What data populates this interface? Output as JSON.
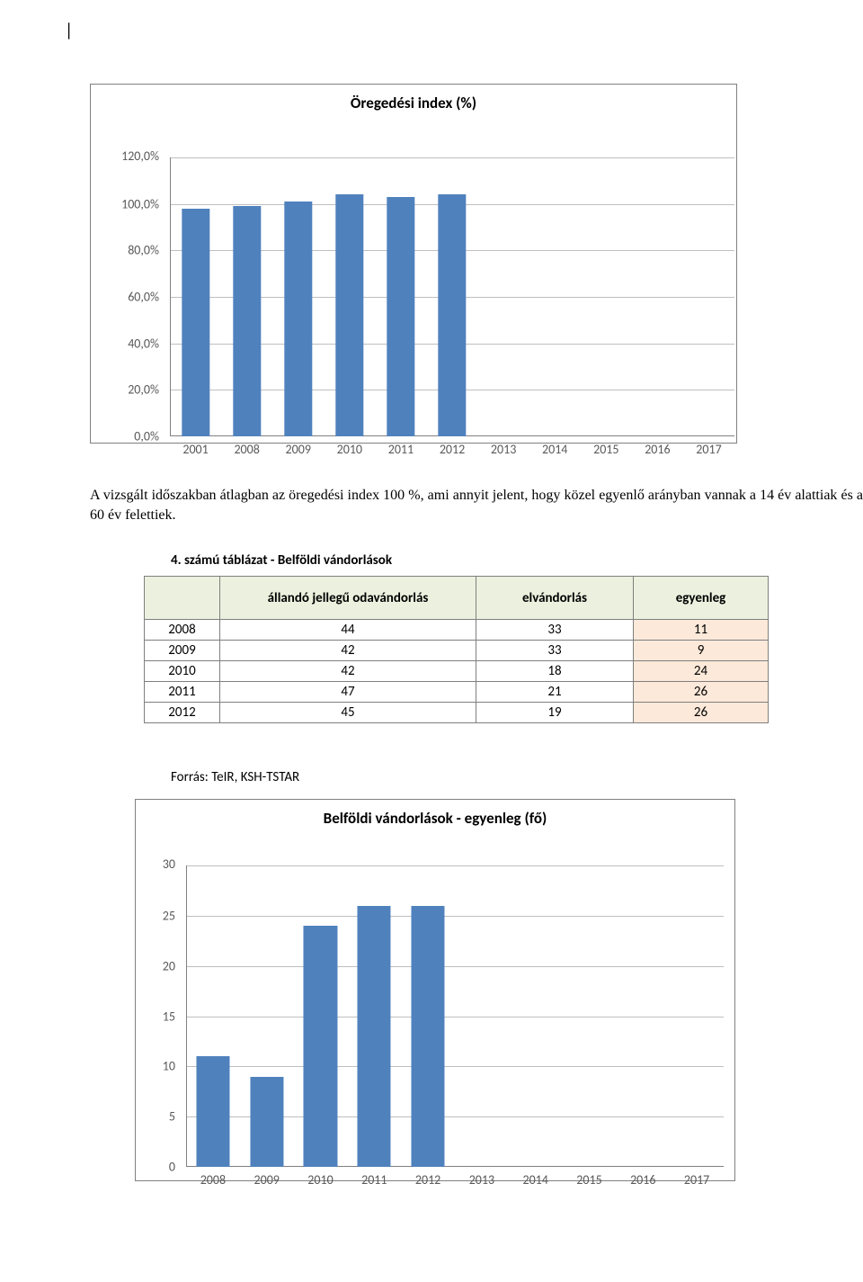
{
  "cursor_glyph": "|",
  "chart1": {
    "type": "bar",
    "title": "Öregedési index (%)",
    "title_fontsize": 17,
    "background_color": "#ffffff",
    "border_color": "#808080",
    "bar_color": "#4f81bd",
    "grid_color": "#bfbfbf",
    "axis_label_color": "#595959",
    "axis_label_fontsize": 14,
    "bar_width_ratio": 0.55,
    "ylim": [
      0,
      120
    ],
    "ytick_step": 20,
    "y_tick_labels": [
      "0,0%",
      "20,0%",
      "40,0%",
      "60,0%",
      "80,0%",
      "100,0%",
      "120,0%"
    ],
    "categories": [
      "2001",
      "2008",
      "2009",
      "2010",
      "2011",
      "2012",
      "2013",
      "2014",
      "2015",
      "2016",
      "2017"
    ],
    "values": [
      98,
      99,
      101,
      104,
      103,
      104,
      0,
      0,
      0,
      0,
      0
    ]
  },
  "paragraph": {
    "text": "A vizsgált időszakban átlagban az öregedési index 100 %, ami annyit jelent, hogy közel egyenlő arányban vannak a 14 év alattiak és a 60 év felettiek."
  },
  "table": {
    "caption": "4. számú táblázat - Belföldi vándorlások",
    "header_bg": "#ebf1de",
    "balance_bg": "#fde9d9",
    "year_col_width": 84,
    "col1_width": 285,
    "col2_width": 175,
    "col3_width": 150,
    "columns": [
      "",
      "állandó jellegű odavándorlás",
      "elvándorlás",
      "egyenleg"
    ],
    "rows": [
      {
        "year": "2008",
        "in": "44",
        "out": "33",
        "bal": "11"
      },
      {
        "year": "2009",
        "in": "42",
        "out": "33",
        "bal": "9"
      },
      {
        "year": "2010",
        "in": "42",
        "out": "18",
        "bal": "24"
      },
      {
        "year": "2011",
        "in": "47",
        "out": "21",
        "bal": "26"
      },
      {
        "year": "2012",
        "in": "45",
        "out": "19",
        "bal": "26"
      }
    ],
    "source": "Forrás: TeIR, KSH-TSTAR"
  },
  "chart2": {
    "type": "bar",
    "title": "Belföldi vándorlások - egyenleg (fő)",
    "title_fontsize": 17,
    "background_color": "#ffffff",
    "border_color": "#808080",
    "bar_color": "#4f81bd",
    "grid_color": "#bfbfbf",
    "axis_label_color": "#595959",
    "axis_label_fontsize": 14,
    "bar_width_ratio": 0.62,
    "ylim": [
      0,
      30
    ],
    "ytick_step": 5,
    "y_tick_labels": [
      "0",
      "5",
      "10",
      "15",
      "20",
      "25",
      "30"
    ],
    "categories": [
      "2008",
      "2009",
      "2010",
      "2011",
      "2012",
      "2013",
      "2014",
      "2015",
      "2016",
      "2017"
    ],
    "values": [
      11,
      9,
      24,
      26,
      26,
      0,
      0,
      0,
      0,
      0
    ]
  }
}
